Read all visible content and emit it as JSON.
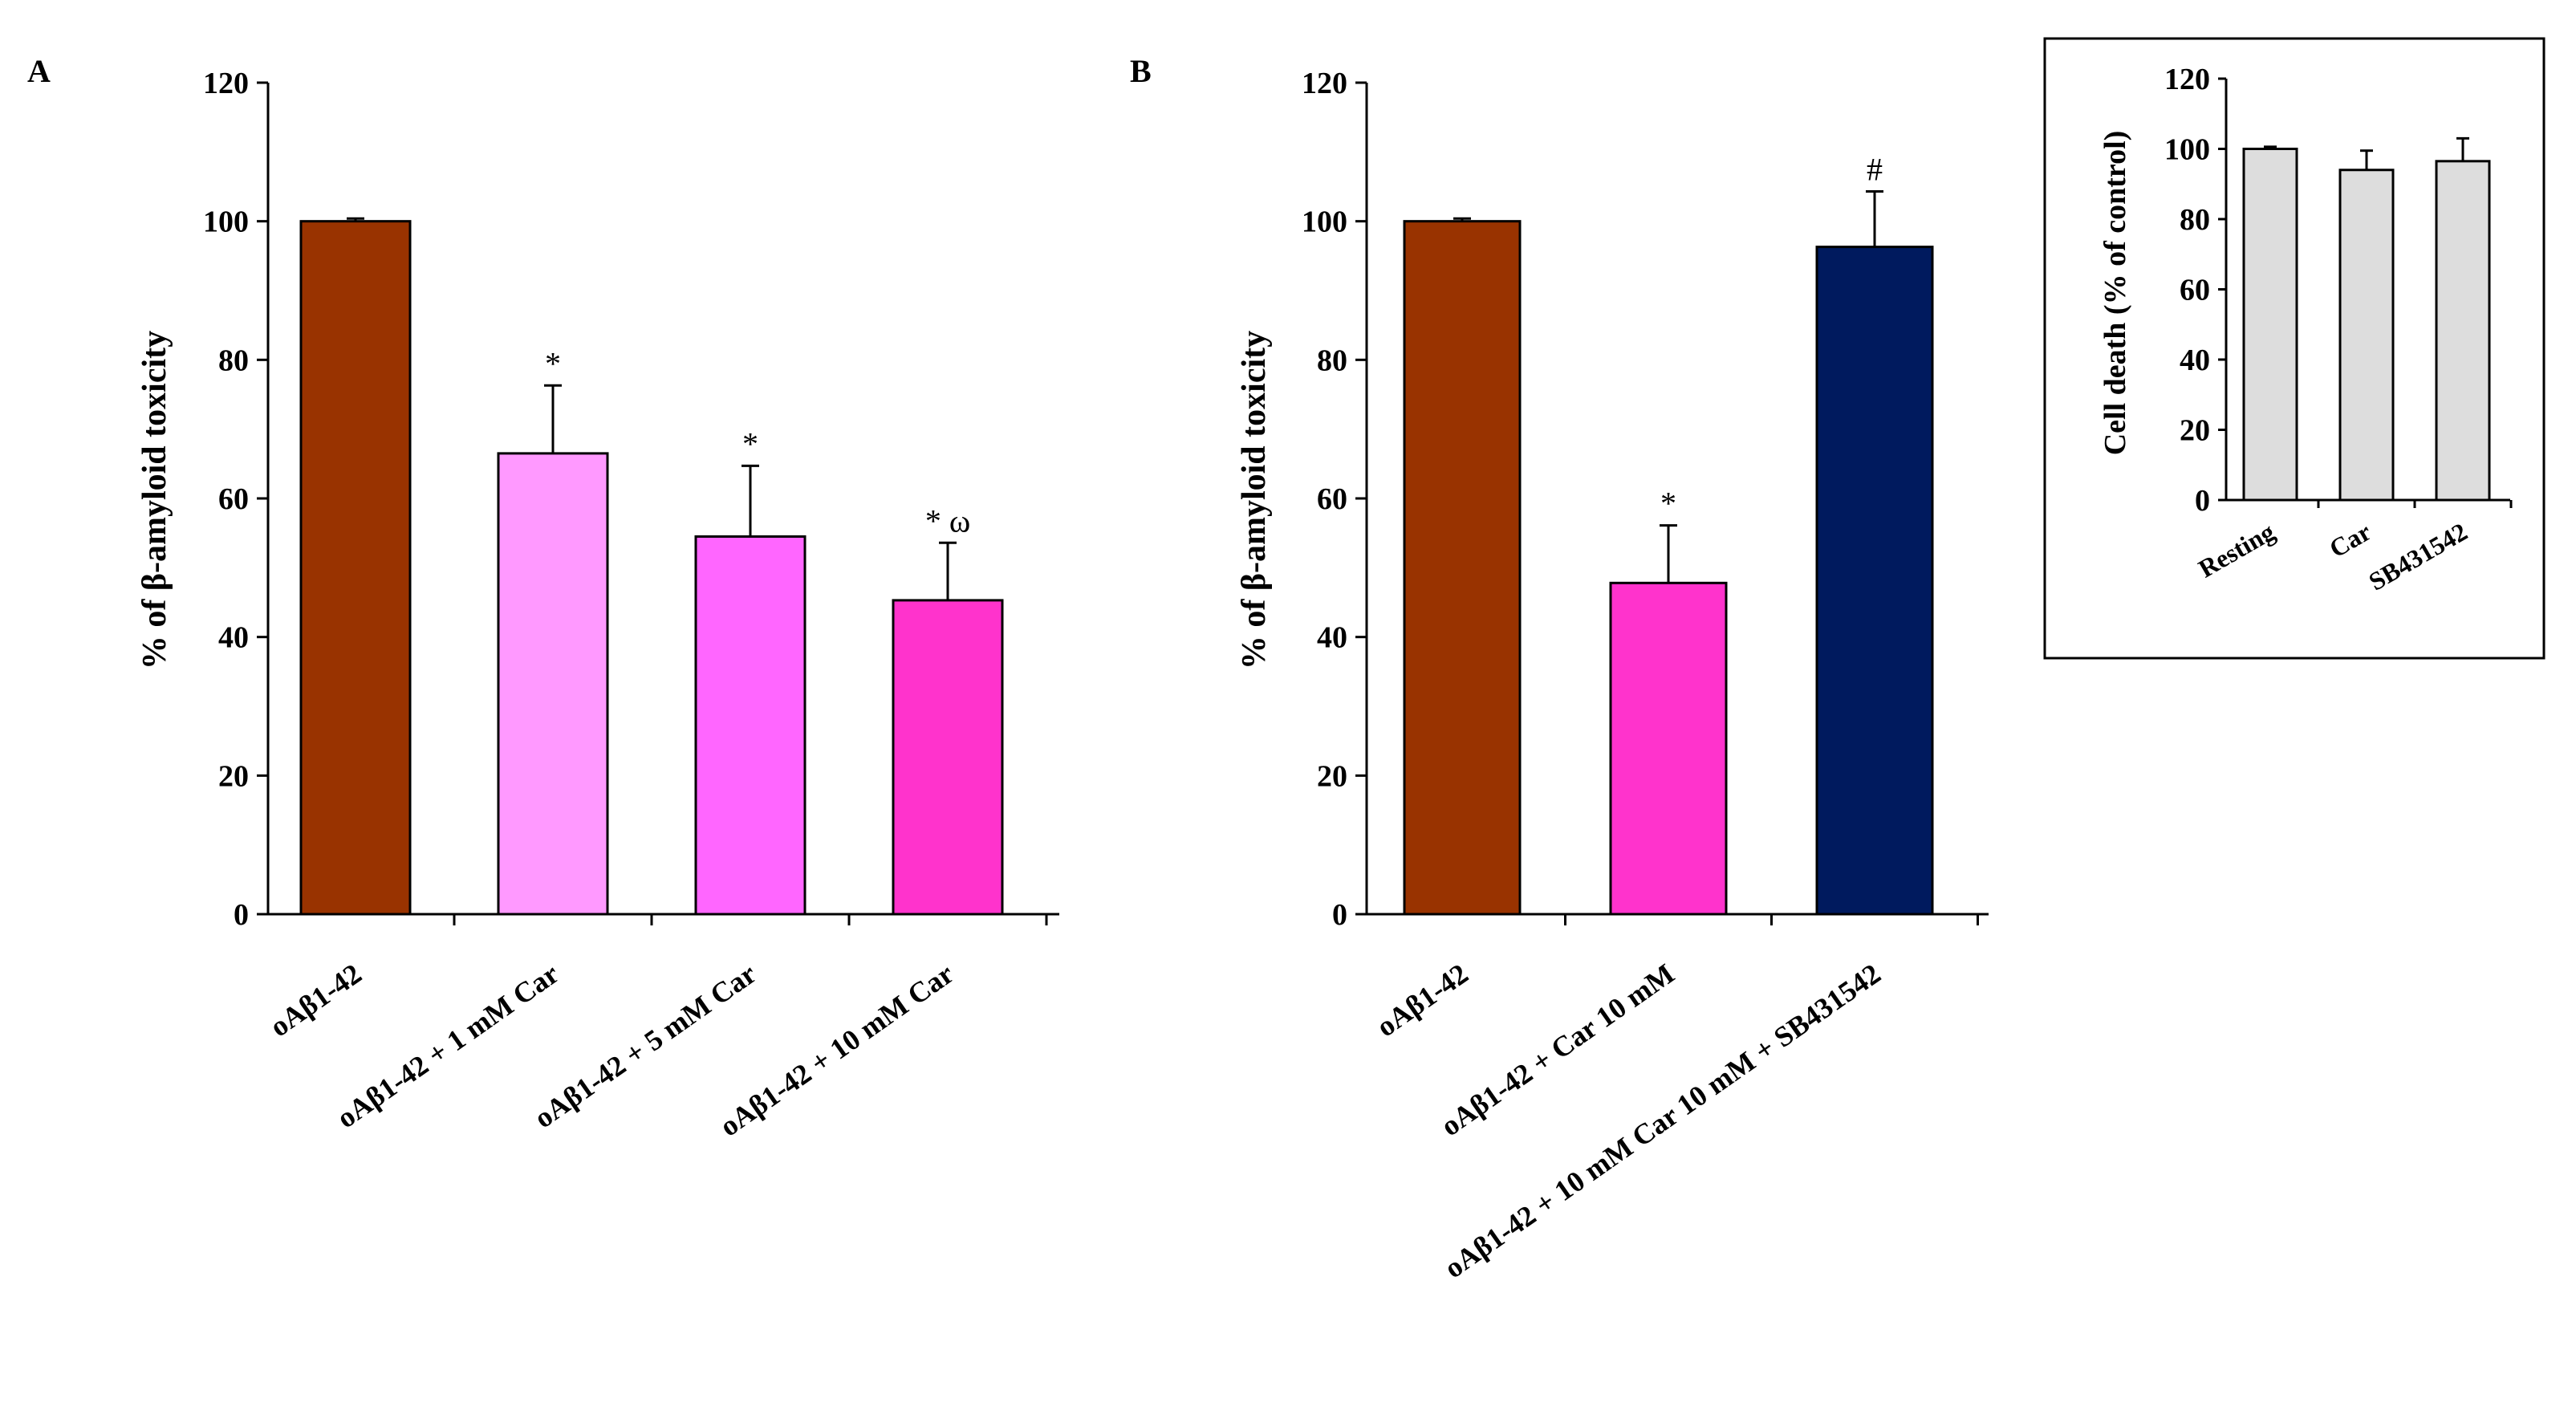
{
  "chart_data": [
    {
      "id": "A",
      "type": "bar",
      "panel_label": "A",
      "ylabel": "% of β-amyloid toxicity",
      "ylim": [
        0,
        120
      ],
      "yticks": [
        0,
        20,
        40,
        60,
        80,
        100,
        120
      ],
      "categories": [
        "oAβ1-42",
        "oAβ1-42 + 1 mM Car",
        "oAβ1-42 + 5 mM Car",
        "oAβ1-42 + 10 mM Car"
      ],
      "values": [
        100,
        66.5,
        54.5,
        45.3
      ],
      "errors": [
        0.4,
        9.8,
        10.2,
        8.3
      ],
      "bar_colors": [
        "#993300",
        "#FF99FF",
        "#FF66FF",
        "#FF33CC"
      ],
      "annotations": [
        "",
        "*",
        "*",
        "* ω"
      ]
    },
    {
      "id": "B",
      "type": "bar",
      "panel_label": "B",
      "ylabel": "% of β-amyloid toxicity",
      "ylim": [
        0,
        120
      ],
      "yticks": [
        0,
        20,
        40,
        60,
        80,
        100,
        120
      ],
      "categories": [
        "oAβ1-42",
        "oAβ1-42 + Car 10 mM",
        "oAβ1-42 + 10 mM Car 10 mM + SB431542"
      ],
      "values": [
        100,
        47.8,
        96.3
      ],
      "errors": [
        0.4,
        8.3,
        8.0
      ],
      "bar_colors": [
        "#993300",
        "#FF33CC",
        "#001A5E"
      ],
      "annotations": [
        "",
        "*",
        "#"
      ]
    },
    {
      "id": "inset",
      "type": "bar",
      "ylabel": "Cell death (% of control)",
      "ylim": [
        0,
        120
      ],
      "yticks": [
        0,
        20,
        40,
        60,
        80,
        100,
        120
      ],
      "categories": [
        "Resting",
        "Car",
        "SB431542"
      ],
      "values": [
        100,
        94,
        96.5
      ],
      "errors": [
        0.6,
        5.5,
        6.5
      ],
      "bar_colors": [
        "#DDDDDD",
        "#DDDDDD",
        "#DDDDDD"
      ],
      "annotations": [
        "",
        "",
        ""
      ]
    }
  ]
}
